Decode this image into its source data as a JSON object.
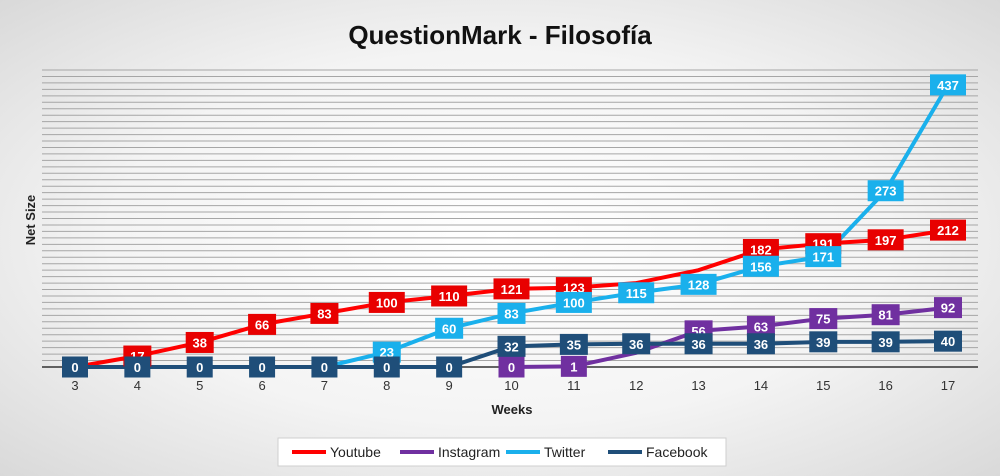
{
  "chart_data": {
    "type": "line",
    "title": "QuestionMark - Filosofía",
    "xlabel": "Weeks",
    "ylabel": "Net Size",
    "x": [
      3,
      4,
      5,
      6,
      7,
      8,
      9,
      10,
      11,
      12,
      13,
      14,
      15,
      16,
      17
    ],
    "ylim": [
      0,
      460
    ],
    "grid": true,
    "legend_position": "bottom",
    "series": [
      {
        "name": "Youtube",
        "color": "#ff0000",
        "label_color": "#e80000",
        "values": [
          0,
          17,
          38,
          66,
          83,
          100,
          110,
          121,
          123,
          130,
          150,
          182,
          191,
          197,
          212
        ],
        "labels": [
          "",
          "17",
          "38",
          "66",
          "83",
          "100",
          "110",
          "121",
          "123",
          "",
          "",
          "182",
          "191",
          "197",
          "212"
        ]
      },
      {
        "name": "Instagram",
        "color": "#7030a0",
        "label_color": "#7030a0",
        "values": [
          null,
          null,
          null,
          null,
          null,
          null,
          null,
          0,
          1,
          22,
          56,
          63,
          75,
          81,
          92
        ],
        "labels": [
          "",
          "",
          "",
          "",
          "",
          "",
          "",
          "0",
          "1",
          "",
          "56",
          "63",
          "75",
          "81",
          "92"
        ]
      },
      {
        "name": "Twitter",
        "color": "#1ab0ec",
        "label_color": "#1ab0ec",
        "values": [
          null,
          null,
          null,
          null,
          0,
          23,
          60,
          83,
          100,
          115,
          128,
          156,
          171,
          273,
          437
        ],
        "labels": [
          "",
          "",
          "",
          "",
          "",
          "23",
          "60",
          "83",
          "100",
          "115",
          "128",
          "156",
          "171",
          "273",
          "437"
        ]
      },
      {
        "name": "Facebook",
        "color": "#1f4e79",
        "label_color": "#1f4e79",
        "values": [
          0,
          0,
          0,
          0,
          0,
          0,
          0,
          32,
          35,
          36,
          36,
          36,
          39,
          39,
          40
        ],
        "labels": [
          "0",
          "0",
          "0",
          "0",
          "0",
          "0",
          "0",
          "32",
          "35",
          "36",
          "36",
          "36",
          "39",
          "39",
          "40"
        ]
      }
    ]
  }
}
